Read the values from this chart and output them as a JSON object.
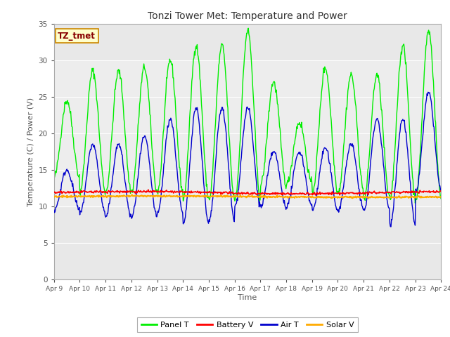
{
  "title": "Tonzi Tower Met: Temperature and Power",
  "xlabel": "Time",
  "ylabel": "Temperature (C) / Power (V)",
  "ylim": [
    0,
    35
  ],
  "yticks": [
    0,
    5,
    10,
    15,
    20,
    25,
    30,
    35
  ],
  "x_labels": [
    "Apr 9",
    "Apr 10",
    "Apr 11",
    "Apr 12",
    "Apr 13",
    "Apr 14",
    "Apr 15",
    "Apr 16",
    "Apr 17",
    "Apr 18",
    "Apr 19",
    "Apr 20",
    "Apr 21",
    "Apr 22",
    "Apr 23",
    "Apr 24"
  ],
  "legend_labels": [
    "Panel T",
    "Battery V",
    "Air T",
    "Solar V"
  ],
  "legend_colors": [
    "#00ee00",
    "#ff0000",
    "#0000cc",
    "#ffaa00"
  ],
  "panel_color": "#00ee00",
  "battery_color": "#ff0000",
  "air_color": "#0000cc",
  "solar_color": "#ffaa00",
  "fig_bg_color": "#ffffff",
  "plot_bg_color": "#e8e8e8",
  "annotation_text": "TZ_tmet",
  "annotation_bg": "#ffffcc",
  "annotation_border": "#cc8800",
  "annotation_text_color": "#880000",
  "grid_color": "#ffffff",
  "spine_color": "#aaaaaa"
}
